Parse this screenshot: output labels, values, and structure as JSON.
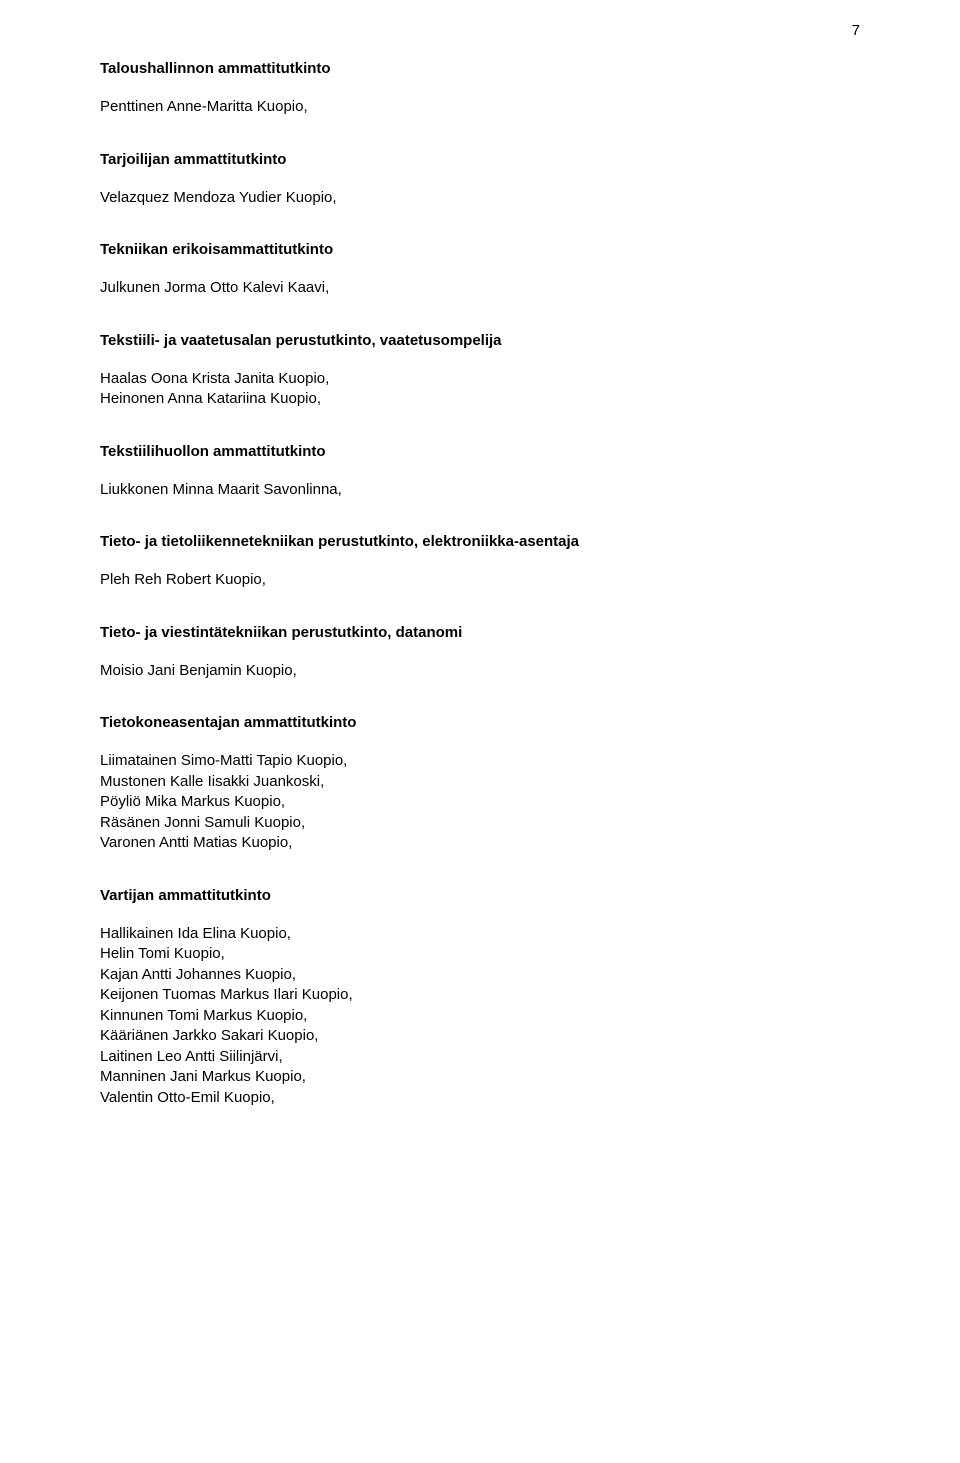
{
  "page_number": "7",
  "sections": [
    {
      "title": "Taloushallinnon ammattitutkinto",
      "entries": [
        "Penttinen Anne-Maritta Kuopio,"
      ]
    },
    {
      "title": "Tarjoilijan ammattitutkinto",
      "entries": [
        "Velazquez Mendoza Yudier Kuopio,"
      ]
    },
    {
      "title": "Tekniikan erikoisammattitutkinto",
      "entries": [
        "Julkunen Jorma Otto Kalevi Kaavi,"
      ]
    },
    {
      "title": "Tekstiili- ja vaatetusalan perustutkinto, vaatetusompelija",
      "entries": [
        "Haalas Oona Krista Janita Kuopio,",
        "Heinonen Anna Katariina Kuopio,"
      ]
    },
    {
      "title": "Tekstiilihuollon ammattitutkinto",
      "entries": [
        "Liukkonen Minna Maarit Savonlinna,"
      ]
    },
    {
      "title": "Tieto- ja tietoliikennetekniikan perustutkinto, elektroniikka-asentaja",
      "entries": [
        "Pleh Reh Robert Kuopio,"
      ]
    },
    {
      "title": "Tieto- ja viestintätekniikan perustutkinto, datanomi",
      "entries": [
        "Moisio Jani Benjamin Kuopio,"
      ]
    },
    {
      "title": "Tietokoneasentajan ammattitutkinto",
      "entries": [
        "Liimatainen Simo-Matti Tapio Kuopio,",
        "Mustonen Kalle Iisakki Juankoski,",
        "Pöyliö Mika Markus Kuopio,",
        "Räsänen Jonni Samuli Kuopio,",
        "Varonen Antti Matias Kuopio,"
      ]
    },
    {
      "title": "Vartijan ammattitutkinto",
      "entries": [
        "Hallikainen Ida Elina Kuopio,",
        "Helin Tomi Kuopio,",
        "Kajan Antti Johannes Kuopio,",
        "Keijonen Tuomas Markus Ilari Kuopio,",
        "Kinnunen Tomi Markus Kuopio,",
        "Kääriänen Jarkko Sakari Kuopio,",
        "Laitinen Leo Antti Siilinjärvi,",
        "Manninen Jani Markus Kuopio,",
        "Valentin Otto-Emil Kuopio,"
      ]
    }
  ]
}
